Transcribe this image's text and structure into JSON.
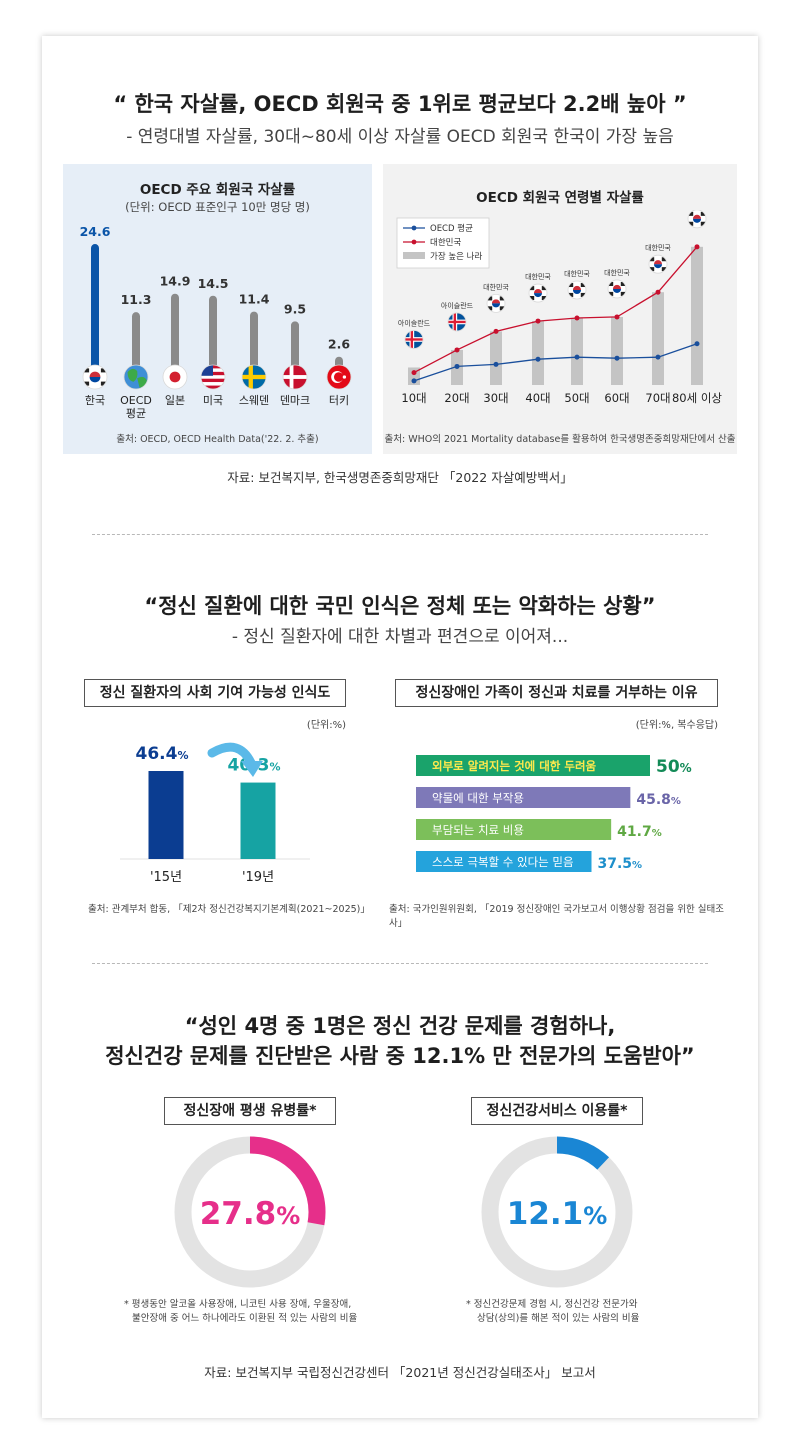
{
  "section1": {
    "headline": "“ 한국 자살률, OECD 회원국 중 1위로 평균보다 2.2배 높아 ”",
    "subline": "- 연령대별 자살률, 30대~80세 이상 자살률 OECD 회원국 한국이 가장 높음",
    "source": "자료: 보건복지부, 한국생명존중희망재단 「2022 자살예방백서」",
    "left_chart_source": "출처: OECD, OECD Health Data('22. 2. 추출)",
    "right_chart_source": "출처: WHO의 2021 Mortality database를 활용하여 한국생명존중희망재단에서 산출",
    "right_legend": [
      "OECD 평균",
      "대한민국",
      "가장 높은 나라"
    ]
  },
  "section2": {
    "headline": "“정신 질환에 대한 국민 인식은 정체 또는 악화하는 상황”",
    "subline": "- 정신 질환자에 대한 차별과 편견으로 이어져...",
    "left_box": "정신 질환자의 사회 기여 가능성 인식도",
    "left_unit": "(단위:%)",
    "left_source": "출처: 관계부처 합동, 「제2차 정신건강복지기본계획(2021~2025)」",
    "right_box": "정신장애인 가족이 정신과 치료를 거부하는 이유",
    "right_unit": "(단위:%, 복수응답)",
    "right_source": "출처: 국가인원위원회, 「2019 정신장애인 국가보고서 이행상황 점검을 위한 실태조사」"
  },
  "section3": {
    "headline_1": "“성인 4명 중 1명은 정신 건강 문제를 경험하나,",
    "headline_2": "정신건강 문제를 진단받은 사람 중 12.1% 만 전문가의 도움받아”",
    "left_box": "정신장애 평생 유병률*",
    "left_note_1": "* 평생동안 알코올 사용장애, 니코틴 사용 장애, 우울장애,",
    "left_note_2": "불안장애 중 어느 하나에라도 이환된 적 있는 사람의 비율",
    "right_box": "정신건강서비스 이용률*",
    "right_note_1": "* 정신건강문제 경험 시, 정신건강 전문가와",
    "right_note_2": "상담(상의)를 해본 적이 있는 사람의 비율",
    "source": "자료: 보건복지부 국립정신건강센터 「2021년 정신건강실태조사」 보고서"
  },
  "chart_data": [
    {
      "type": "bar",
      "title": "OECD 주요 회원국 자살률",
      "subtitle": "(단위: OECD 표준인구 10만 명당 명)",
      "categories": [
        "한국",
        "OECD 평균",
        "일본",
        "미국",
        "스웨덴",
        "덴마크",
        "터키"
      ],
      "values": [
        24.6,
        11.3,
        14.9,
        14.5,
        11.4,
        9.5,
        2.6
      ],
      "colors": {
        "highlight": "#0b55a8",
        "normal": "#8a8a8a"
      },
      "flags": [
        "korea-flag-icon",
        "globe-icon",
        "japan-flag-icon",
        "usa-flag-icon",
        "sweden-flag-icon",
        "denmark-flag-icon",
        "turkey-flag-icon"
      ]
    },
    {
      "type": "line",
      "title": "OECD 회원국 연령별 자살률",
      "categories": [
        "10대",
        "20대",
        "30대",
        "40대",
        "50대",
        "60대",
        "70대",
        "80세 이상"
      ],
      "series": [
        {
          "name": "OECD 평균",
          "values": [
            2,
            9,
            10,
            12.5,
            13.5,
            13,
            13.5,
            20
          ],
          "color": "#1a4f9c"
        },
        {
          "name": "대한민국",
          "values": [
            6,
            17,
            26,
            31,
            32.5,
            33,
            45,
            67
          ],
          "color": "#c8102e"
        },
        {
          "name": "가장 높은 나라",
          "values": [
            8.5,
            17,
            26,
            31,
            32.5,
            33,
            45,
            67
          ],
          "color": "#c4c4c4"
        }
      ],
      "top_country_labels": [
        "아이슬란드",
        "아이슬란드",
        "대한민국",
        "대한민국",
        "대한민국",
        "대한민국",
        "대한민국",
        "대한민국"
      ],
      "ylim": [
        0,
        80
      ]
    },
    {
      "type": "bar",
      "categories": [
        "'15년",
        "'19년"
      ],
      "values": [
        46.4,
        40.3
      ],
      "value_labels": [
        "46.4",
        "40.3"
      ],
      "unit": "%",
      "colors": [
        "#0b3d91",
        "#16a3a3"
      ]
    },
    {
      "type": "bar",
      "orientation": "horizontal",
      "categories": [
        "외부로 알려지는 것에 대한 두려움",
        "약물에 대한 부작용",
        "부담되는 치료 비용",
        "스스로 극복할 수 있다는 믿음"
      ],
      "values": [
        50,
        45.8,
        41.7,
        37.5
      ],
      "value_labels": [
        "50",
        "45.8",
        "41.7",
        "37.5"
      ],
      "unit": "%",
      "colors": [
        "#1aa36b",
        "#7e79b8",
        "#7cbf5a",
        "#24a3dc"
      ],
      "value_colors": [
        "#138a57",
        "#6a65a8",
        "#5fa843",
        "#1e8fcb"
      ]
    },
    {
      "type": "pie",
      "label": "정신장애 평생 유병률*",
      "value": 27.8,
      "value_label": "27.8",
      "unit": "%",
      "color": "#e62f8a"
    },
    {
      "type": "pie",
      "label": "정신건강서비스 이용률*",
      "value": 12.1,
      "value_label": "12.1",
      "unit": "%",
      "color": "#1a86d4"
    }
  ]
}
